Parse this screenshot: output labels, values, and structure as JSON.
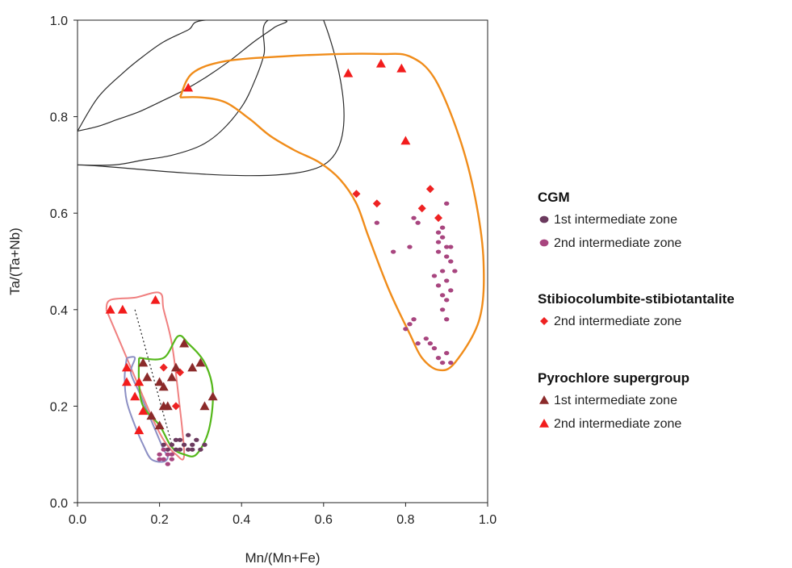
{
  "chart_data": {
    "type": "scatter",
    "xlabel": "Mn/(Mn+Fe)",
    "ylabel": "Ta/(Ta+Nb)",
    "xlim": [
      0,
      1
    ],
    "ylim": [
      0,
      1
    ],
    "xticks": [
      "0.0",
      "0.2",
      "0.4",
      "0.6",
      "0.8",
      "1.0"
    ],
    "yticks": [
      "0.0",
      "0.2",
      "0.4",
      "0.6",
      "0.8",
      "1.0"
    ],
    "grid": false,
    "legend_position": "right",
    "legend": [
      {
        "heading": "CGM",
        "items": [
          {
            "label": "1st intermediate zone",
            "marker": "circle",
            "color": "#6b3a5e"
          },
          {
            "label": "2nd intermediate zone",
            "marker": "circle",
            "color": "#a8457f"
          }
        ]
      },
      {
        "heading": "Stibiocolumbite-stibiotantalite",
        "items": [
          {
            "label": "2nd intermediate zone",
            "marker": "diamond",
            "color": "#ee2222"
          }
        ]
      },
      {
        "heading": "Pyrochlore supergroup",
        "items": [
          {
            "label": "1st intermediate zone",
            "marker": "triangle",
            "color": "#8b2a2a"
          },
          {
            "label": "2nd intermediate zone",
            "marker": "triangle",
            "color": "#f21c1c"
          }
        ]
      }
    ],
    "series": [
      {
        "marker": "circle",
        "color": "#6b3a5e",
        "points": [
          [
            0.22,
            0.11
          ],
          [
            0.23,
            0.12
          ],
          [
            0.24,
            0.11
          ],
          [
            0.25,
            0.13
          ],
          [
            0.26,
            0.12
          ],
          [
            0.27,
            0.14
          ],
          [
            0.28,
            0.12
          ],
          [
            0.29,
            0.13
          ],
          [
            0.3,
            0.11
          ],
          [
            0.31,
            0.12
          ],
          [
            0.25,
            0.11
          ],
          [
            0.27,
            0.11
          ],
          [
            0.24,
            0.13
          ],
          [
            0.28,
            0.11
          ],
          [
            0.21,
            0.12
          ]
        ]
      },
      {
        "marker": "circle",
        "color": "#a8457f",
        "points": [
          [
            0.2,
            0.1
          ],
          [
            0.21,
            0.09
          ],
          [
            0.22,
            0.1
          ],
          [
            0.23,
            0.09
          ],
          [
            0.21,
            0.11
          ],
          [
            0.22,
            0.08
          ],
          [
            0.23,
            0.1
          ],
          [
            0.2,
            0.09
          ],
          [
            0.73,
            0.58
          ],
          [
            0.77,
            0.52
          ],
          [
            0.81,
            0.53
          ],
          [
            0.81,
            0.37
          ],
          [
            0.8,
            0.36
          ],
          [
            0.82,
            0.38
          ],
          [
            0.83,
            0.33
          ],
          [
            0.82,
            0.59
          ],
          [
            0.83,
            0.58
          ],
          [
            0.85,
            0.34
          ],
          [
            0.86,
            0.33
          ],
          [
            0.87,
            0.32
          ],
          [
            0.88,
            0.3
          ],
          [
            0.89,
            0.29
          ],
          [
            0.9,
            0.31
          ],
          [
            0.91,
            0.29
          ],
          [
            0.88,
            0.56
          ],
          [
            0.89,
            0.55
          ],
          [
            0.9,
            0.53
          ],
          [
            0.91,
            0.5
          ],
          [
            0.89,
            0.48
          ],
          [
            0.9,
            0.46
          ],
          [
            0.88,
            0.45
          ],
          [
            0.89,
            0.43
          ],
          [
            0.9,
            0.42
          ],
          [
            0.91,
            0.44
          ],
          [
            0.87,
            0.47
          ],
          [
            0.88,
            0.52
          ],
          [
            0.9,
            0.38
          ],
          [
            0.89,
            0.4
          ],
          [
            0.91,
            0.53
          ],
          [
            0.92,
            0.48
          ],
          [
            0.9,
            0.62
          ],
          [
            0.89,
            0.57
          ],
          [
            0.88,
            0.54
          ],
          [
            0.9,
            0.51
          ]
        ]
      },
      {
        "marker": "diamond",
        "color": "#ee2222",
        "points": [
          [
            0.68,
            0.64
          ],
          [
            0.73,
            0.62
          ],
          [
            0.86,
            0.65
          ],
          [
            0.84,
            0.61
          ],
          [
            0.88,
            0.59
          ],
          [
            0.21,
            0.28
          ],
          [
            0.24,
            0.2
          ],
          [
            0.25,
            0.27
          ]
        ]
      },
      {
        "marker": "triangle",
        "color": "#8b2a2a",
        "points": [
          [
            0.16,
            0.29
          ],
          [
            0.17,
            0.26
          ],
          [
            0.18,
            0.18
          ],
          [
            0.2,
            0.25
          ],
          [
            0.21,
            0.24
          ],
          [
            0.21,
            0.2
          ],
          [
            0.22,
            0.2
          ],
          [
            0.23,
            0.26
          ],
          [
            0.24,
            0.28
          ],
          [
            0.26,
            0.33
          ],
          [
            0.28,
            0.28
          ],
          [
            0.3,
            0.29
          ],
          [
            0.31,
            0.2
          ],
          [
            0.33,
            0.22
          ],
          [
            0.2,
            0.16
          ]
        ]
      },
      {
        "marker": "triangle",
        "color": "#f21c1c",
        "points": [
          [
            0.08,
            0.4
          ],
          [
            0.11,
            0.4
          ],
          [
            0.19,
            0.42
          ],
          [
            0.12,
            0.28
          ],
          [
            0.12,
            0.25
          ],
          [
            0.14,
            0.22
          ],
          [
            0.15,
            0.25
          ],
          [
            0.15,
            0.15
          ],
          [
            0.16,
            0.19
          ],
          [
            0.27,
            0.86
          ],
          [
            0.66,
            0.89
          ],
          [
            0.74,
            0.91
          ],
          [
            0.79,
            0.9
          ],
          [
            0.8,
            0.75
          ]
        ]
      }
    ],
    "outlines": [
      {
        "color": "#2b2b2b",
        "width": 1.2,
        "points": [
          [
            0.0,
            0.77
          ],
          [
            0.05,
            0.84
          ],
          [
            0.11,
            0.89
          ],
          [
            0.16,
            0.925
          ],
          [
            0.21,
            0.955
          ],
          [
            0.27,
            0.98
          ],
          [
            0.31,
            1.0
          ],
          [
            0.5,
            1.0
          ],
          [
            0.48,
            0.985
          ],
          [
            0.43,
            0.955
          ],
          [
            0.37,
            0.915
          ],
          [
            0.31,
            0.88
          ],
          [
            0.26,
            0.855
          ],
          [
            0.2,
            0.83
          ],
          [
            0.15,
            0.81
          ],
          [
            0.1,
            0.795
          ],
          [
            0.05,
            0.78
          ],
          [
            0.0,
            0.77
          ]
        ]
      },
      {
        "color": "#2b2b2b",
        "width": 1.2,
        "points": [
          [
            0.0,
            0.7
          ],
          [
            0.09,
            0.7
          ],
          [
            0.16,
            0.71
          ],
          [
            0.23,
            0.72
          ],
          [
            0.3,
            0.74
          ],
          [
            0.35,
            0.77
          ],
          [
            0.4,
            0.82
          ],
          [
            0.43,
            0.87
          ],
          [
            0.455,
            0.93
          ],
          [
            0.465,
            1.0
          ],
          [
            0.6,
            1.0
          ],
          [
            0.6,
            0.7
          ],
          [
            0.0,
            0.7
          ]
        ]
      },
      {
        "color": "#f08c1a",
        "width": 2.4,
        "points": [
          [
            0.25,
            0.84
          ],
          [
            0.28,
            0.89
          ],
          [
            0.36,
            0.915
          ],
          [
            0.5,
            0.925
          ],
          [
            0.64,
            0.93
          ],
          [
            0.74,
            0.93
          ],
          [
            0.81,
            0.925
          ],
          [
            0.87,
            0.88
          ],
          [
            0.93,
            0.76
          ],
          [
            0.97,
            0.63
          ],
          [
            0.99,
            0.5
          ],
          [
            0.98,
            0.38
          ],
          [
            0.92,
            0.29
          ],
          [
            0.88,
            0.275
          ],
          [
            0.84,
            0.3
          ],
          [
            0.81,
            0.35
          ],
          [
            0.76,
            0.44
          ],
          [
            0.71,
            0.55
          ],
          [
            0.68,
            0.62
          ],
          [
            0.64,
            0.67
          ],
          [
            0.59,
            0.705
          ],
          [
            0.53,
            0.73
          ],
          [
            0.47,
            0.76
          ],
          [
            0.42,
            0.795
          ],
          [
            0.36,
            0.83
          ],
          [
            0.3,
            0.84
          ],
          [
            0.25,
            0.84
          ]
        ]
      },
      {
        "color": "#f08080",
        "width": 2.0,
        "points": [
          [
            0.07,
            0.4
          ],
          [
            0.08,
            0.42
          ],
          [
            0.14,
            0.425
          ],
          [
            0.2,
            0.435
          ],
          [
            0.21,
            0.4
          ],
          [
            0.23,
            0.33
          ],
          [
            0.245,
            0.23
          ],
          [
            0.26,
            0.1
          ],
          [
            0.24,
            0.1
          ],
          [
            0.21,
            0.13
          ],
          [
            0.18,
            0.18
          ],
          [
            0.14,
            0.26
          ],
          [
            0.11,
            0.32
          ],
          [
            0.085,
            0.37
          ],
          [
            0.07,
            0.4
          ]
        ]
      },
      {
        "color": "#8c8fc4",
        "width": 2.0,
        "points": [
          [
            0.12,
            0.3
          ],
          [
            0.14,
            0.3
          ],
          [
            0.13,
            0.27
          ],
          [
            0.15,
            0.23
          ],
          [
            0.17,
            0.19
          ],
          [
            0.19,
            0.15
          ],
          [
            0.21,
            0.11
          ],
          [
            0.22,
            0.095
          ],
          [
            0.21,
            0.085
          ],
          [
            0.18,
            0.09
          ],
          [
            0.16,
            0.12
          ],
          [
            0.14,
            0.16
          ],
          [
            0.12,
            0.21
          ],
          [
            0.115,
            0.26
          ],
          [
            0.12,
            0.3
          ]
        ]
      },
      {
        "color": "#55b81b",
        "width": 2.2,
        "points": [
          [
            0.15,
            0.3
          ],
          [
            0.21,
            0.3
          ],
          [
            0.245,
            0.345
          ],
          [
            0.27,
            0.33
          ],
          [
            0.31,
            0.29
          ],
          [
            0.33,
            0.23
          ],
          [
            0.32,
            0.15
          ],
          [
            0.29,
            0.1
          ],
          [
            0.26,
            0.1
          ],
          [
            0.23,
            0.115
          ],
          [
            0.2,
            0.16
          ],
          [
            0.16,
            0.2
          ],
          [
            0.15,
            0.25
          ],
          [
            0.15,
            0.3
          ]
        ]
      }
    ],
    "trend_lines": [
      {
        "color": "#222222",
        "dash": "2,3",
        "points": [
          [
            0.14,
            0.4
          ],
          [
            0.23,
            0.12
          ]
        ]
      }
    ]
  }
}
